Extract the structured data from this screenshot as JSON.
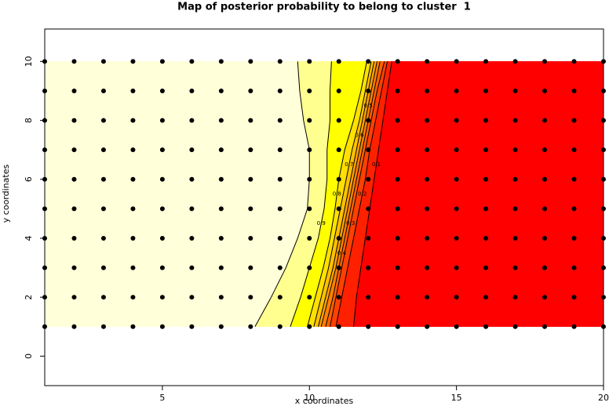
{
  "chart_data": {
    "type": "contour",
    "title": "Map of posterior probability to belong to cluster  1",
    "xlabel": "x coordinates",
    "ylabel": "y coordinates",
    "xlim": [
      1,
      20
    ],
    "ylim": [
      -1,
      11.1
    ],
    "xticks": [
      5,
      10,
      15,
      20
    ],
    "yticks": [
      0,
      2,
      4,
      6,
      8,
      10
    ],
    "contour_y": [
      1,
      2,
      3,
      4,
      5,
      6,
      7,
      8,
      9,
      10
    ],
    "contours": [
      {
        "x": [
          8.15,
          8.7,
          9.2,
          9.6,
          9.93,
          10.0,
          10.0,
          9.8,
          9.67,
          9.6
        ]
      },
      {
        "level": 0.9,
        "x": [
          9.35,
          9.7,
          10.0,
          10.3,
          10.5,
          10.6,
          10.6,
          10.7,
          10.7,
          10.75
        ]
      },
      {
        "level": 0.8,
        "x": [
          9.93,
          10.2,
          10.47,
          10.7,
          10.87,
          11.0,
          11.2,
          11.5,
          11.75,
          11.95
        ]
      },
      {
        "level": 0.7,
        "x": [
          10.15,
          10.4,
          10.65,
          10.85,
          11.05,
          11.25,
          11.45,
          11.7,
          11.9,
          12.1
        ]
      },
      {
        "level": 0.6,
        "x": [
          10.3,
          10.55,
          10.8,
          11.0,
          11.2,
          11.4,
          11.6,
          11.8,
          12.0,
          12.2
        ]
      },
      {
        "level": 0.5,
        "x": [
          10.4,
          10.65,
          10.9,
          11.1,
          11.3,
          11.5,
          11.7,
          11.9,
          12.1,
          12.3
        ]
      },
      {
        "level": 0.4,
        "x": [
          10.55,
          10.8,
          11.0,
          11.2,
          11.4,
          11.6,
          11.8,
          12.0,
          12.2,
          12.4
        ]
      },
      {
        "level": 0.3,
        "x": [
          10.7,
          10.9,
          11.1,
          11.3,
          11.5,
          11.7,
          11.9,
          12.1,
          12.3,
          12.55
        ]
      },
      {
        "level": 0.2,
        "x": [
          10.9,
          11.1,
          11.3,
          11.5,
          11.7,
          11.9,
          12.05,
          12.25,
          12.45,
          12.65
        ]
      },
      {
        "level": 0.1,
        "x": [
          11.5,
          11.6,
          11.75,
          11.9,
          12.05,
          12.2,
          12.35,
          12.5,
          12.65,
          12.8
        ]
      }
    ],
    "band_colors": [
      "#ffffd9",
      "#ffff90",
      "#ffff00",
      "#ffe000",
      "#ffc000",
      "#ffa000",
      "#ff8000",
      "#ff6000",
      "#ff4000",
      "#ff2000",
      "#ff0000"
    ],
    "points": {
      "x": [
        1,
        2,
        3,
        4,
        5,
        6,
        7,
        8,
        9,
        10,
        11,
        12,
        13,
        14,
        15,
        16,
        17,
        18,
        19,
        20
      ],
      "y": [
        1,
        2,
        3,
        4,
        5,
        6,
        7,
        8,
        9,
        10
      ]
    }
  }
}
